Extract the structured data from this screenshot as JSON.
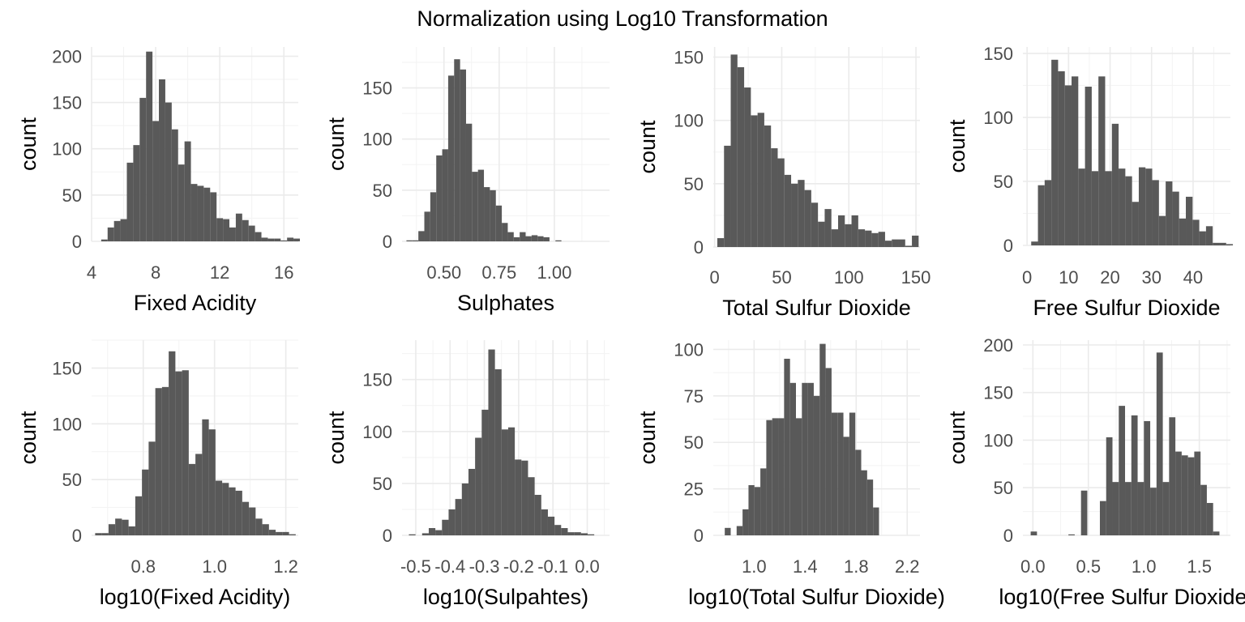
{
  "title": "Normalization using Log10 Transformation",
  "colors": {
    "bar": "#595959",
    "grid_major": "#ebebeb",
    "grid_minor": "#f3f3f3",
    "tick_text": "#4d4d4d",
    "background": "#ffffff"
  },
  "chart_data": [
    {
      "type": "bar",
      "subtype": "histogram",
      "xlabel": "Fixed Acidity",
      "ylabel": "count",
      "xlim": [
        4.0,
        16.9
      ],
      "ylim": [
        0,
        210
      ],
      "xticks": [
        4,
        8,
        12,
        16
      ],
      "xtick_labels": [
        "4",
        "8",
        "12",
        "16"
      ],
      "yticks": [
        0,
        50,
        100,
        150,
        200
      ],
      "ytick_labels": [
        "0",
        "50",
        "100",
        "150",
        "200"
      ],
      "grid": true,
      "bin_start": 4.6,
      "bin_width": 0.4,
      "values": [
        2,
        15,
        22,
        24,
        85,
        104,
        155,
        205,
        130,
        175,
        150,
        121,
        83,
        108,
        62,
        60,
        58,
        53,
        25,
        24,
        15,
        30,
        23,
        17,
        10,
        4,
        3,
        3,
        1,
        4,
        3
      ]
    },
    {
      "type": "bar",
      "subtype": "histogram",
      "xlabel": "Sulphates",
      "ylabel": "count",
      "xlim": [
        0.31,
        1.25
      ],
      "ylim": [
        0,
        190
      ],
      "xticks": [
        0.5,
        0.75,
        1.0
      ],
      "xtick_labels": [
        "0.50",
        "0.75",
        "1.00"
      ],
      "yticks": [
        0,
        50,
        100,
        150
      ],
      "ytick_labels": [
        "0",
        "50",
        "100",
        "150"
      ],
      "grid": true,
      "bin_start": 0.33,
      "bin_width": 0.027,
      "values": [
        1,
        1,
        10,
        29,
        48,
        84,
        90,
        162,
        178,
        168,
        115,
        68,
        70,
        53,
        50,
        35,
        18,
        9,
        4,
        9,
        5,
        6,
        5,
        4,
        0,
        1
      ]
    },
    {
      "type": "bar",
      "subtype": "histogram",
      "xlabel": "Total Sulfur Dioxide",
      "ylabel": "count",
      "xlim": [
        -1,
        153
      ],
      "ylim": [
        0,
        158
      ],
      "xticks": [
        0,
        50,
        100,
        150
      ],
      "xtick_labels": [
        "0",
        "50",
        "100",
        "150"
      ],
      "yticks": [
        0,
        50,
        100,
        150
      ],
      "ytick_labels": [
        "0",
        "50",
        "100",
        "150"
      ],
      "grid": true,
      "bin_start": 2,
      "bin_width": 5,
      "values": [
        7,
        80,
        152,
        142,
        126,
        104,
        106,
        96,
        78,
        70,
        57,
        50,
        53,
        45,
        35,
        20,
        30,
        14,
        25,
        18,
        25,
        14,
        13,
        11,
        12,
        5,
        6,
        6,
        1,
        9
      ]
    },
    {
      "type": "bar",
      "subtype": "histogram",
      "xlabel": "Free Sulfur Dioxide",
      "ylabel": "count",
      "xlim": [
        -1,
        49
      ],
      "ylim": [
        0,
        155
      ],
      "xticks": [
        0,
        10,
        20,
        30,
        40
      ],
      "xtick_labels": [
        "0",
        "10",
        "20",
        "30",
        "40"
      ],
      "yticks": [
        0,
        50,
        100,
        150
      ],
      "ytick_labels": [
        "0",
        "50",
        "100",
        "150"
      ],
      "grid": true,
      "bin_start": 1,
      "bin_width": 1.62,
      "values": [
        3,
        47,
        51,
        145,
        136,
        125,
        132,
        60,
        124,
        58,
        132,
        58,
        95,
        60,
        54,
        34,
        61,
        60,
        51,
        23,
        50,
        42,
        21,
        38,
        20,
        11,
        15,
        2,
        2,
        1
      ]
    },
    {
      "type": "bar",
      "subtype": "histogram",
      "xlabel": "log10(Fixed Acidity)",
      "ylabel": "count",
      "xlim": [
        0.655,
        1.235
      ],
      "ylim": [
        0,
        175
      ],
      "xticks": [
        0.8,
        1.0,
        1.2
      ],
      "xtick_labels": [
        "0.8",
        "1.0",
        "1.2"
      ],
      "yticks": [
        0,
        50,
        100,
        150
      ],
      "ytick_labels": [
        "0",
        "50",
        "100",
        "150"
      ],
      "grid": true,
      "bin_start": 0.665,
      "bin_width": 0.01876,
      "values": [
        2,
        2,
        10,
        15,
        14,
        8,
        35,
        59,
        84,
        132,
        133,
        165,
        147,
        148,
        64,
        73,
        104,
        95,
        49,
        47,
        43,
        40,
        30,
        25,
        15,
        10,
        5,
        3,
        3,
        1
      ]
    },
    {
      "type": "bar",
      "subtype": "histogram",
      "xlabel": "log10(Sulpahtes)",
      "ylabel": "count",
      "xlim": [
        -0.54,
        0.065
      ],
      "ylim": [
        0,
        188
      ],
      "xticks": [
        -0.5,
        -0.4,
        -0.3,
        -0.2,
        -0.1,
        0.0
      ],
      "xtick_labels": [
        "-0.5",
        "-0.4",
        "-0.3",
        "-0.2",
        "-0.1",
        "0.0"
      ],
      "yticks": [
        0,
        50,
        100,
        150
      ],
      "ytick_labels": [
        "0",
        "50",
        "100",
        "150"
      ],
      "grid": true,
      "bin_start": -0.52,
      "bin_width": 0.0193,
      "values": [
        1,
        0,
        2,
        7,
        5,
        15,
        25,
        35,
        50,
        64,
        94,
        121,
        179,
        160,
        102,
        104,
        73,
        72,
        56,
        39,
        25,
        18,
        10,
        7,
        3,
        3,
        2,
        1,
        0
      ]
    },
    {
      "type": "bar",
      "subtype": "histogram",
      "xlabel": "log10(Total Sulfur Dioxide)",
      "ylabel": "count",
      "xlim": [
        0.68,
        2.3
      ],
      "ylim": [
        0,
        105
      ],
      "xticks": [
        1.0,
        1.4,
        1.8,
        2.2
      ],
      "xtick_labels": [
        "1.0",
        "1.4",
        "1.8",
        "2.2"
      ],
      "yticks": [
        0,
        25,
        50,
        75,
        100
      ],
      "ytick_labels": [
        "0",
        "25",
        "50",
        "75",
        "100"
      ],
      "grid": true,
      "bin_start": 0.77,
      "bin_width": 0.0465,
      "values": [
        4,
        0,
        5,
        14,
        27,
        26,
        36,
        62,
        63,
        63,
        95,
        82,
        63,
        82,
        82,
        75,
        103,
        90,
        66,
        66,
        53,
        66,
        46,
        35,
        30,
        15
      ]
    },
    {
      "type": "bar",
      "subtype": "histogram",
      "xlabel": "log10(Free Sulfur Dioxide)",
      "ylabel": "count",
      "xlim": [
        -0.09,
        1.78
      ],
      "ylim": [
        0,
        205
      ],
      "xticks": [
        0.0,
        0.5,
        1.0,
        1.5
      ],
      "xtick_labels": [
        "0.0",
        "0.5",
        "1.0",
        "1.5"
      ],
      "yticks": [
        0,
        50,
        100,
        150,
        200
      ],
      "ytick_labels": [
        "0",
        "50",
        "100",
        "150",
        "200"
      ],
      "grid": true,
      "bin_start": -0.02,
      "bin_width": 0.0567,
      "values": [
        4,
        0,
        0,
        0,
        0,
        0,
        1,
        0,
        47,
        0,
        0,
        36,
        103,
        56,
        136,
        56,
        126,
        56,
        120,
        50,
        192,
        56,
        124,
        88,
        84,
        82,
        88,
        53,
        34,
        4
      ]
    }
  ]
}
